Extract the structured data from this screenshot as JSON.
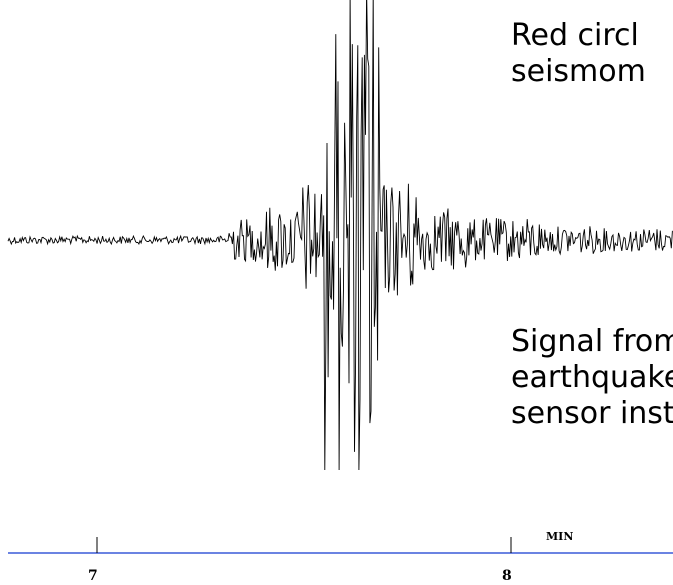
{
  "captions": {
    "top_line1": "Red circl",
    "top_line2": "seismom",
    "bottom_line1": "Signal from",
    "bottom_line2": "earthquake",
    "bottom_line3": "sensor insta"
  },
  "time_axis": {
    "unit": "MIN",
    "ticks": [
      "7",
      "8"
    ],
    "color": "#3a5ad8"
  },
  "trace": {
    "color": "#000000"
  }
}
